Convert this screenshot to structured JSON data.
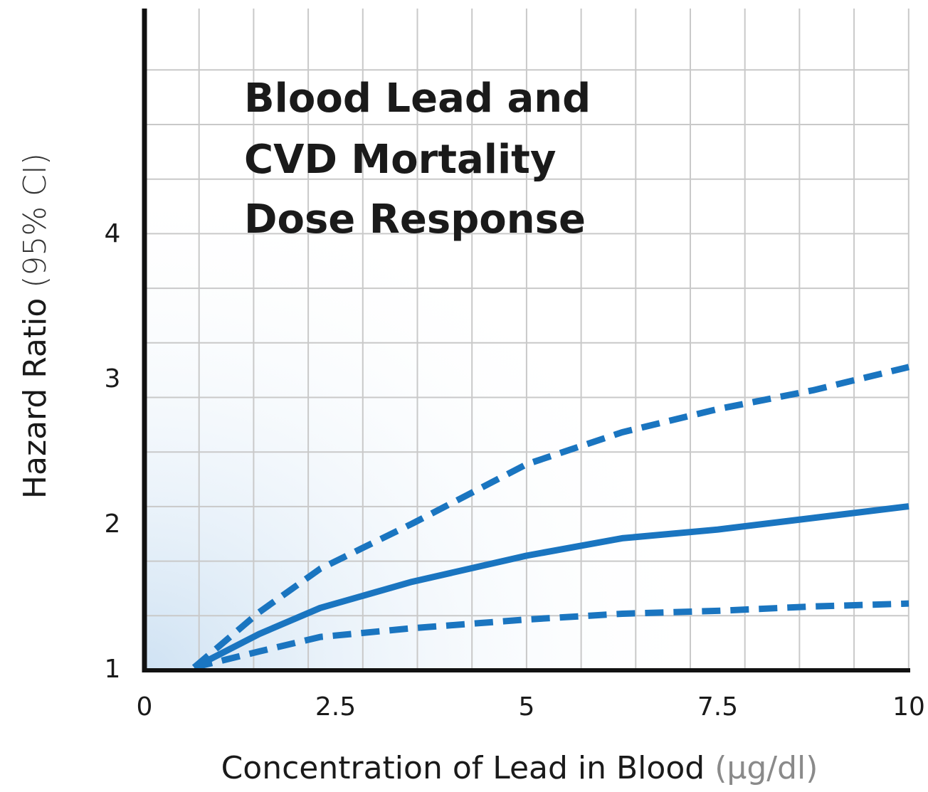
{
  "chart_data": {
    "type": "line",
    "title": [
      "Blood Lead and",
      "CVD Mortality",
      "Dose Response"
    ],
    "xlabel": "Concentration of Lead in Blood",
    "xlabel_unit": "(µg/dl)",
    "ylabel": "Hazard Ratio",
    "ylabel_unit": "(95% CI)",
    "x": [
      0.65,
      1.5,
      2.3,
      3.5,
      5,
      6.25,
      7.5,
      8.75,
      10
    ],
    "series": [
      {
        "color": "#1a75c0",
        "dashed": false,
        "values": [
          1.02,
          1.25,
          1.43,
          1.61,
          1.79,
          1.91,
          1.97,
          2.05,
          2.13
        ]
      },
      {
        "color": "#1a75c0",
        "dashed": true,
        "values": [
          1.02,
          1.4,
          1.7,
          2.01,
          2.42,
          2.64,
          2.8,
          2.93,
          3.09
        ]
      },
      {
        "color": "#1a75c0",
        "dashed": true,
        "values": [
          1.02,
          1.13,
          1.23,
          1.29,
          1.35,
          1.39,
          1.41,
          1.44,
          1.46
        ]
      }
    ],
    "xlim": [
      0,
      10
    ],
    "xticks": [
      0,
      2.5,
      5,
      7.5,
      10
    ],
    "ylim": [
      1,
      5.56
    ],
    "yticks": [
      1,
      2,
      3,
      4
    ],
    "grid": true
  }
}
